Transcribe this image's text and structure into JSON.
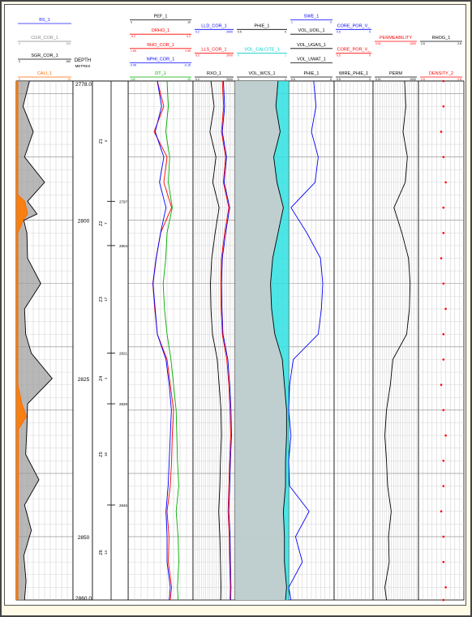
{
  "depth_header": {
    "title": "DEPTH",
    "unit": "METRES"
  },
  "depth_ticks": [
    2778.0,
    2800,
    2825,
    2850,
    2860.0
  ],
  "zone_markers": [
    2797,
    2804,
    2821,
    2829,
    2845
  ],
  "zones": [
    {
      "name": "Z1",
      "sub": "4"
    },
    {
      "name": "Z2",
      "sub": "7"
    },
    {
      "name": "Z3",
      "sub": "17"
    },
    {
      "name": "Z4",
      "sub": "1"
    },
    {
      "name": "Z5",
      "sub": "16"
    },
    {
      "name": "Z6",
      "sub": "14"
    }
  ],
  "tracks": [
    {
      "id": "track1",
      "curves": [
        {
          "name": "BS_1",
          "color": "#1a1aff",
          "range": [
            "",
            ""
          ]
        },
        {
          "name": "CGR_COR_1",
          "color": "#888888",
          "range": [
            "0",
            "150"
          ]
        },
        {
          "name": "SGR_COR_1",
          "color": "#000000",
          "range": [
            "0",
            "150"
          ]
        },
        {
          "name": "CALI_1",
          "color": "#ff6600",
          "range": [
            "6",
            "16"
          ]
        }
      ]
    },
    {
      "id": "track3",
      "curves": [
        {
          "name": "PEF_1",
          "color": "#000000",
          "range": [
            "0",
            "10"
          ]
        },
        {
          "name": "DRHO_1",
          "color": "#ff0000",
          "range": [
            "-0.2",
            "0.2"
          ]
        },
        {
          "name": "RHO_COR_1",
          "color": "#ff0000",
          "range": [
            "1.95",
            "2.95"
          ]
        },
        {
          "name": "NPHI_COR_1",
          "color": "#0000ff",
          "range": [
            "0.45",
            "-0.15"
          ]
        },
        {
          "name": "DT_1",
          "color": "#00aa00",
          "range": [
            "140",
            "40"
          ]
        }
      ]
    },
    {
      "id": "track4",
      "curves": [
        {
          "name": "LLD_COR_1",
          "color": "#0000ff",
          "range": [
            "0.2",
            "2000"
          ]
        },
        {
          "name": "LLS_COR_1",
          "color": "#ff0000",
          "range": [
            "0.2",
            "2000"
          ]
        },
        {
          "name": "RXO_1",
          "color": "#000000",
          "range": [
            "0.2",
            "2000"
          ]
        }
      ]
    },
    {
      "id": "track5",
      "curves": [
        {
          "name": "PHIE_1",
          "color": "#000000",
          "range": [
            "0.5",
            "0"
          ]
        },
        {
          "name": "VOL_CALCITE_1",
          "color": "#00cccc",
          "range": [
            "0",
            "1"
          ]
        },
        {
          "name": "VOL_WCS_1",
          "color": "#000000",
          "range": [
            "0",
            "1"
          ]
        }
      ]
    },
    {
      "id": "track6",
      "curves": [
        {
          "name": "SWE_1",
          "color": "#0000ff",
          "range": [
            "1",
            "0"
          ]
        },
        {
          "name": "VOL_UOIL_1",
          "color": "#000000",
          "range": [
            "",
            ""
          ]
        },
        {
          "name": "VOL_UGAS_1",
          "color": "#000000",
          "range": [
            "",
            ""
          ]
        },
        {
          "name": "VOL_UWAT_1",
          "color": "#000000",
          "range": [
            "",
            ""
          ]
        },
        {
          "name": "PHIE_1",
          "color": "#000000",
          "range": [
            "0.5",
            "0"
          ]
        }
      ]
    },
    {
      "id": "track7",
      "curves": [
        {
          "name": "CORE_POR_V_",
          "color": "#0000ff",
          "range": [
            "0.5",
            "0"
          ]
        },
        {
          "name": "CORE_POR_V_",
          "color": "#ff0000",
          "range": [
            "0.5",
            "0"
          ]
        },
        {
          "name": "WIRE_PHIE_1",
          "color": "#000000",
          "range": [
            "0.5",
            "0"
          ]
        }
      ]
    },
    {
      "id": "track8",
      "curves": [
        {
          "name": "PERMEABILITY",
          "color": "#ff0000",
          "range": [
            "0.01",
            "1000"
          ]
        },
        {
          "name": "PERM",
          "color": "#000000",
          "range": [
            "0.01",
            "1000"
          ]
        }
      ]
    },
    {
      "id": "track9",
      "curves": [
        {
          "name": "RHOG_1",
          "color": "#000000",
          "range": [
            "2.6",
            "2.8"
          ]
        },
        {
          "name": "DENSITY_2",
          "color": "#ff0000",
          "range": [
            "2.6",
            "2.8"
          ]
        }
      ]
    }
  ],
  "chart_data": {
    "type": "line",
    "title": "",
    "xlabel": "",
    "ylabel": "DEPTH (METRES)",
    "ylim": [
      2778.0,
      2860.0
    ],
    "y_increases_downward": true,
    "grid": true,
    "note": "Multi-track well log; curve values approximated from the image.",
    "series": [
      {
        "name": "SGR_COR_1",
        "track": "track1",
        "unit_min": 0,
        "unit_max": 150,
        "depth": [
          2778,
          2782,
          2786,
          2790,
          2794,
          2797,
          2799,
          2800,
          2802,
          2806,
          2810,
          2814,
          2818,
          2821,
          2825,
          2829,
          2833,
          2837,
          2841,
          2845,
          2849,
          2853,
          2857,
          2860
        ],
        "values": [
          35,
          18,
          45,
          22,
          75,
          30,
          55,
          20,
          28,
          30,
          65,
          22,
          25,
          40,
          95,
          30,
          28,
          25,
          60,
          22,
          40,
          20,
          26,
          22
        ]
      },
      {
        "name": "CALI_1",
        "track": "track1",
        "unit_min": 6,
        "unit_max": 16,
        "depth": [
          2778,
          2796,
          2797,
          2799,
          2800,
          2802,
          2826,
          2829,
          2831,
          2833,
          2860
        ],
        "values": [
          6.3,
          6.3,
          7.5,
          8.0,
          7.2,
          6.3,
          6.3,
          7.0,
          7.8,
          6.4,
          6.3
        ]
      },
      {
        "name": "RHO_COR_1",
        "track": "track3",
        "unit_min": 1.95,
        "unit_max": 2.95,
        "depth": [
          2778,
          2782,
          2786,
          2790,
          2794,
          2798,
          2802,
          2806,
          2810,
          2814,
          2818,
          2822,
          2826,
          2830,
          2834,
          2838,
          2842,
          2846,
          2850,
          2854,
          2858,
          2860
        ],
        "values": [
          2.4,
          2.5,
          2.35,
          2.55,
          2.5,
          2.62,
          2.45,
          2.38,
          2.33,
          2.36,
          2.4,
          2.55,
          2.6,
          2.65,
          2.63,
          2.62,
          2.6,
          2.55,
          2.58,
          2.57,
          2.62,
          2.6
        ]
      },
      {
        "name": "NPHI_COR_1",
        "track": "track3",
        "unit_min": 0.45,
        "unit_max": -0.15,
        "depth": [
          2778,
          2782,
          2786,
          2790,
          2794,
          2798,
          2802,
          2806,
          2810,
          2814,
          2818,
          2822,
          2826,
          2830,
          2834,
          2838,
          2842,
          2846,
          2850,
          2854,
          2858,
          2860
        ],
        "values": [
          0.18,
          0.14,
          0.2,
          0.12,
          0.16,
          0.1,
          0.15,
          0.19,
          0.22,
          0.2,
          0.18,
          0.1,
          0.07,
          0.05,
          0.06,
          0.07,
          0.08,
          0.1,
          0.09,
          0.09,
          0.06,
          0.07
        ]
      },
      {
        "name": "DT_1",
        "track": "track3",
        "unit_min": 140,
        "unit_max": 40,
        "depth": [
          2778,
          2782,
          2786,
          2790,
          2794,
          2798,
          2802,
          2806,
          2810,
          2814,
          2818,
          2822,
          2826,
          2830,
          2834,
          2838,
          2842,
          2846,
          2850,
          2854,
          2858,
          2860
        ],
        "values": [
          80,
          78,
          82,
          76,
          78,
          72,
          80,
          82,
          86,
          84,
          80,
          74,
          70,
          66,
          65,
          64,
          62,
          66,
          63,
          62,
          64,
          63
        ]
      },
      {
        "name": "LLD_COR_1",
        "track": "track4",
        "unit_min": 0.2,
        "unit_max": 2000,
        "depth": [
          2778,
          2782,
          2786,
          2790,
          2794,
          2798,
          2802,
          2806,
          2810,
          2814,
          2818,
          2822,
          2826,
          2830,
          2834,
          2838,
          2842,
          2846,
          2850,
          2854,
          2858,
          2860
        ],
        "values": [
          150,
          200,
          120,
          300,
          180,
          600,
          250,
          120,
          100,
          110,
          140,
          400,
          600,
          800,
          900,
          700,
          600,
          500,
          650,
          700,
          800,
          750
        ]
      },
      {
        "name": "LLS_COR_1",
        "track": "track4",
        "unit_min": 0.2,
        "unit_max": 2000,
        "depth": [
          2778,
          2782,
          2786,
          2790,
          2794,
          2798,
          2802,
          2806,
          2810,
          2814,
          2818,
          2822,
          2826,
          2830,
          2834,
          2838,
          2842,
          2846,
          2850,
          2854,
          2858,
          2860
        ],
        "values": [
          120,
          160,
          100,
          250,
          150,
          500,
          200,
          100,
          90,
          95,
          120,
          320,
          500,
          650,
          750,
          600,
          500,
          420,
          550,
          600,
          700,
          650
        ]
      },
      {
        "name": "RXO_1",
        "track": "track4",
        "unit_min": 0.2,
        "unit_max": 2000,
        "depth": [
          2778,
          2782,
          2786,
          2790,
          2794,
          2798,
          2802,
          2806,
          2810,
          2814,
          2818,
          2822,
          2826,
          2830,
          2834,
          2838,
          2842,
          2846,
          2850,
          2854,
          2858,
          2860
        ],
        "values": [
          10,
          20,
          8,
          30,
          15,
          60,
          25,
          12,
          9,
          10,
          14,
          40,
          60,
          90,
          100,
          80,
          70,
          55,
          70,
          80,
          90,
          85
        ]
      },
      {
        "name": "PHIE_1",
        "track": "track5",
        "unit_min": 0.5,
        "unit_max": 0,
        "depth": [
          2778,
          2782,
          2786,
          2790,
          2794,
          2798,
          2802,
          2806,
          2810,
          2814,
          2818,
          2822,
          2826,
          2830,
          2834,
          2838,
          2842,
          2846,
          2850,
          2854,
          2858,
          2860
        ],
        "values": [
          0.1,
          0.12,
          0.08,
          0.14,
          0.11,
          0.05,
          0.1,
          0.15,
          0.17,
          0.16,
          0.13,
          0.06,
          0.04,
          0.02,
          0.02,
          0.03,
          0.03,
          0.05,
          0.04,
          0.04,
          0.02,
          0.03
        ]
      },
      {
        "name": "SWE_1",
        "track": "track6",
        "unit_min": 1,
        "unit_max": 0,
        "depth": [
          2778,
          2782,
          2786,
          2790,
          2794,
          2798,
          2802,
          2806,
          2810,
          2814,
          2818,
          2822,
          2826,
          2830,
          2834,
          2838,
          2842,
          2846,
          2850,
          2854,
          2858,
          2860
        ],
        "values": [
          0.45,
          0.4,
          0.5,
          0.35,
          0.42,
          0.95,
          0.6,
          0.3,
          0.25,
          0.28,
          0.35,
          0.9,
          0.98,
          1.0,
          0.95,
          1.0,
          0.98,
          0.55,
          0.85,
          0.7,
          1.0,
          0.95
        ]
      },
      {
        "name": "PERM",
        "track": "track8",
        "unit_min": 0.01,
        "unit_max": 1000,
        "depth": [
          2778,
          2782,
          2786,
          2790,
          2794,
          2798,
          2802,
          2806,
          2810,
          2814,
          2818,
          2822,
          2826,
          2830,
          2834,
          2838,
          2842,
          2846,
          2850,
          2854,
          2858,
          2860
        ],
        "values": [
          30,
          40,
          20,
          60,
          35,
          2,
          15,
          80,
          120,
          100,
          50,
          1.5,
          0.8,
          0.3,
          0.2,
          0.3,
          0.4,
          1.0,
          0.5,
          0.6,
          0.2,
          0.3
        ]
      },
      {
        "name": "DENSITY_2",
        "track": "track9",
        "unit_min": 2.6,
        "unit_max": 2.8,
        "depth": [
          2778,
          2782,
          2786,
          2790,
          2794,
          2798,
          2802,
          2806,
          2810,
          2814,
          2818,
          2822,
          2826,
          2830,
          2834,
          2838,
          2842,
          2846,
          2850,
          2854,
          2858,
          2860
        ],
        "values": [
          2.71,
          2.71,
          2.7,
          2.71,
          2.72,
          2.71,
          2.71,
          2.7,
          2.71,
          2.72,
          2.71,
          2.71,
          2.7,
          2.71,
          2.72,
          2.71,
          2.71,
          2.7,
          2.71,
          2.71,
          2.72,
          2.71
        ]
      }
    ]
  }
}
